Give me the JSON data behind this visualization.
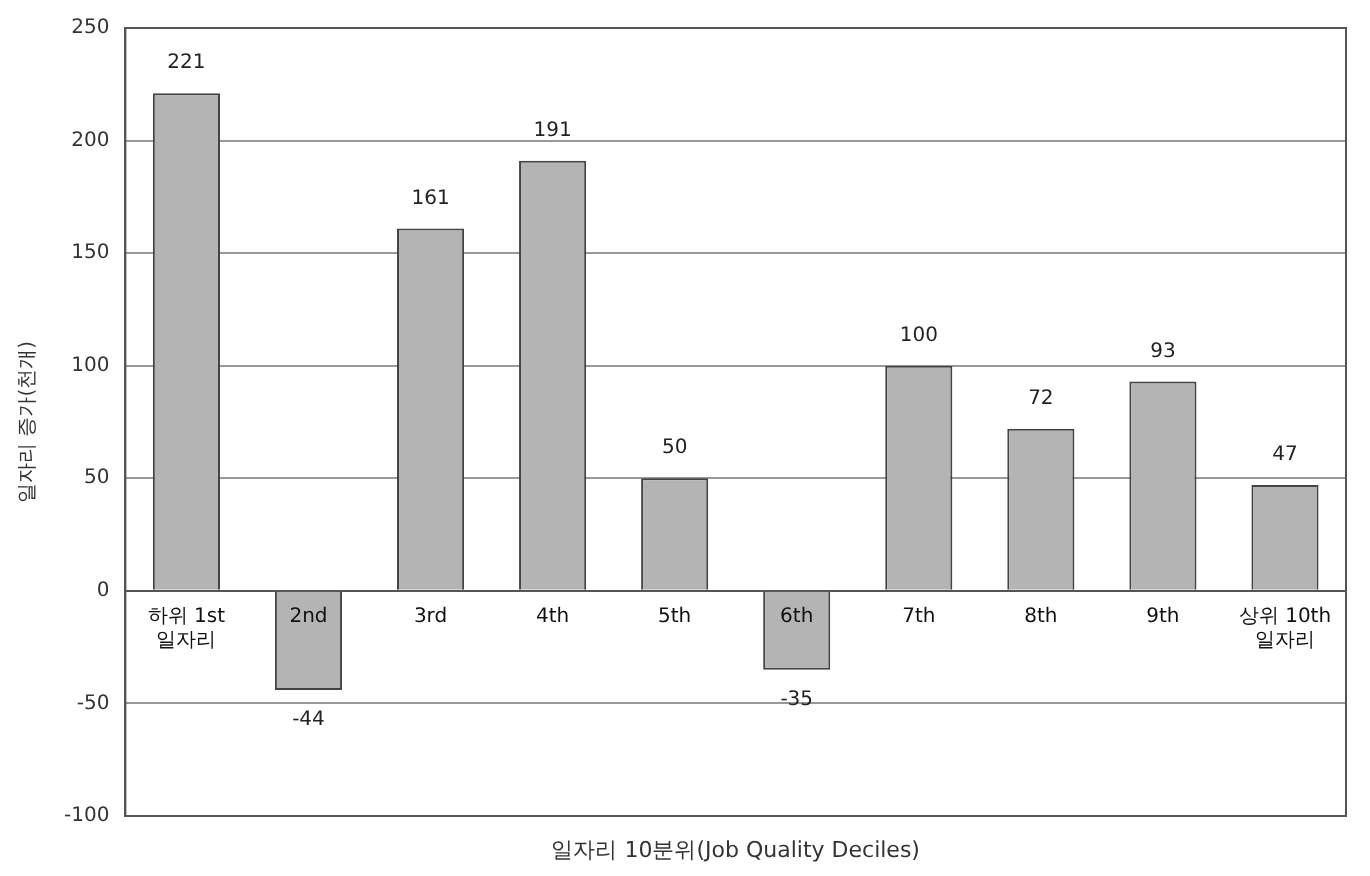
{
  "chart_data": {
    "type": "bar",
    "xlabel": "일자리 10분위(Job Quality Deciles)",
    "ylabel": "일자리 증가(천개)",
    "categories": [
      "하위 1st\n일자리",
      "2nd",
      "3rd",
      "4th",
      "5th",
      "6th",
      "7th",
      "8th",
      "9th",
      "상위 10th\n일자리"
    ],
    "values": [
      221,
      -44,
      161,
      191,
      50,
      -35,
      100,
      72,
      93,
      47
    ],
    "color": "#b4b4b4",
    "ylim": [
      -100,
      250
    ],
    "yticks": [
      -100,
      -50,
      0,
      50,
      100,
      150,
      200,
      250
    ],
    "grid": "y",
    "data_labels": true
  }
}
